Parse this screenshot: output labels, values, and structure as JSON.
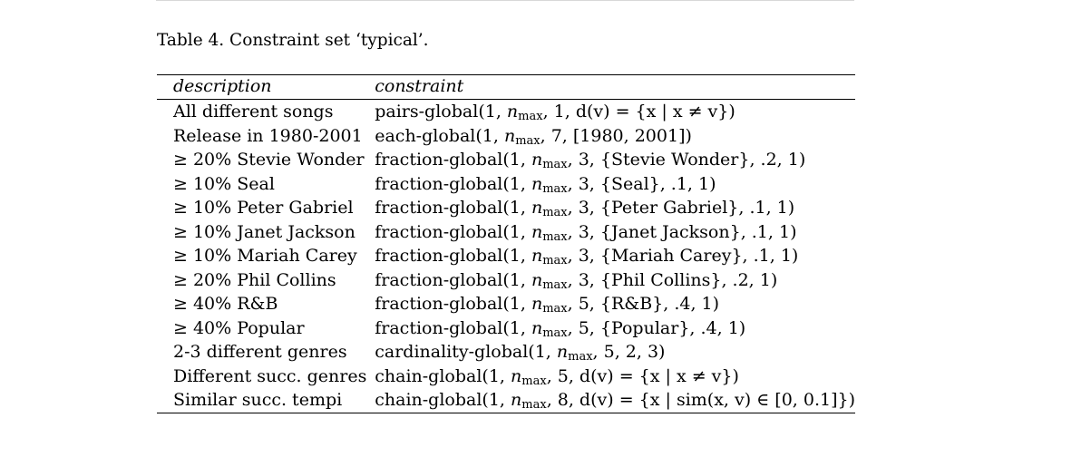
{
  "caption": "Table 4. Constraint set ‘typical’.",
  "headers": {
    "description": "description",
    "constraint": "constraint"
  },
  "rows": [
    {
      "description": "All different songs",
      "fn": "pairs-global",
      "pre": "(1, ",
      "n": "n",
      "sub": "max",
      "post": ", 1, d(v) = {x | x ≠ v})"
    },
    {
      "description": "Release in 1980-2001",
      "fn": "each-global",
      "pre": "(1, ",
      "n": "n",
      "sub": "max",
      "post": ", 7, [1980, 2001])"
    },
    {
      "description": "≥ 20% Stevie Wonder",
      "fn": "fraction-global",
      "pre": "(1, ",
      "n": "n",
      "sub": "max",
      "post": ", 3, {Stevie Wonder}, .2, 1)"
    },
    {
      "description": "≥ 10% Seal",
      "fn": "fraction-global",
      "pre": "(1, ",
      "n": "n",
      "sub": "max",
      "post": ", 3, {Seal}, .1, 1)"
    },
    {
      "description": "≥ 10% Peter Gabriel",
      "fn": "fraction-global",
      "pre": "(1, ",
      "n": "n",
      "sub": "max",
      "post": ", 3, {Peter Gabriel}, .1, 1)"
    },
    {
      "description": "≥ 10% Janet Jackson",
      "fn": "fraction-global",
      "pre": "(1, ",
      "n": "n",
      "sub": "max",
      "post": ", 3, {Janet Jackson}, .1, 1)"
    },
    {
      "description": "≥ 10% Mariah Carey",
      "fn": "fraction-global",
      "pre": "(1, ",
      "n": "n",
      "sub": "max",
      "post": ", 3, {Mariah Carey}, .1, 1)"
    },
    {
      "description": "≥ 20% Phil Collins",
      "fn": "fraction-global",
      "pre": "(1, ",
      "n": "n",
      "sub": "max",
      "post": ", 3, {Phil Collins}, .2, 1)"
    },
    {
      "description": "≥ 40% R&B",
      "fn": "fraction-global",
      "pre": "(1, ",
      "n": "n",
      "sub": "max",
      "post": ", 5, {R&B}, .4, 1)"
    },
    {
      "description": "≥ 40% Popular",
      "fn": "fraction-global",
      "pre": "(1, ",
      "n": "n",
      "sub": "max",
      "post": ", 5, {Popular}, .4, 1)"
    },
    {
      "description": "2-3 different genres",
      "fn": "cardinality-global",
      "pre": "(1, ",
      "n": "n",
      "sub": "max",
      "post": ", 5, 2, 3)"
    },
    {
      "description": "Different succ. genres",
      "fn": "chain-global",
      "pre": "(1, ",
      "n": "n",
      "sub": "max",
      "post": ", 5, d(v) = {x | x ≠ v})"
    },
    {
      "description": "Similar succ. tempi",
      "fn": "chain-global",
      "pre": "(1, ",
      "n": "n",
      "sub": "max",
      "post": ", 8, d(v) = {x | sim(x, v) ∈ [0, 0.1]})"
    }
  ]
}
